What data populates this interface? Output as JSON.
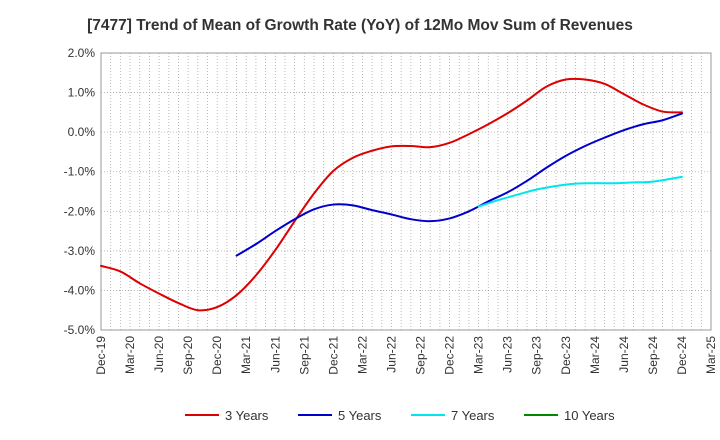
{
  "chart_data": {
    "type": "line",
    "title": "[7477]  Trend of Mean of Growth Rate (YoY) of 12Mo Mov Sum of Revenues",
    "xlabel": "",
    "ylabel": "",
    "ylim": [
      -5.0,
      2.0
    ],
    "yticks": [
      {
        "value": 2.0,
        "label": "2.0%"
      },
      {
        "value": 1.0,
        "label": "1.0%"
      },
      {
        "value": 0.0,
        "label": "0.0%"
      },
      {
        "value": -1.0,
        "label": "-1.0%"
      },
      {
        "value": -2.0,
        "label": "-2.0%"
      },
      {
        "value": -3.0,
        "label": "-3.0%"
      },
      {
        "value": -4.0,
        "label": "-4.0%"
      },
      {
        "value": -5.0,
        "label": "-5.0%"
      }
    ],
    "x_range": [
      0,
      63
    ],
    "xticks": [
      {
        "index": 0,
        "label": "Dec-19"
      },
      {
        "index": 3,
        "label": "Mar-20"
      },
      {
        "index": 6,
        "label": "Jun-20"
      },
      {
        "index": 9,
        "label": "Sep-20"
      },
      {
        "index": 12,
        "label": "Dec-20"
      },
      {
        "index": 15,
        "label": "Mar-21"
      },
      {
        "index": 18,
        "label": "Jun-21"
      },
      {
        "index": 21,
        "label": "Sep-21"
      },
      {
        "index": 24,
        "label": "Dec-21"
      },
      {
        "index": 27,
        "label": "Mar-22"
      },
      {
        "index": 30,
        "label": "Jun-22"
      },
      {
        "index": 33,
        "label": "Sep-22"
      },
      {
        "index": 36,
        "label": "Dec-22"
      },
      {
        "index": 39,
        "label": "Mar-23"
      },
      {
        "index": 42,
        "label": "Jun-23"
      },
      {
        "index": 45,
        "label": "Sep-23"
      },
      {
        "index": 48,
        "label": "Dec-23"
      },
      {
        "index": 51,
        "label": "Mar-24"
      },
      {
        "index": 54,
        "label": "Jun-24"
      },
      {
        "index": 57,
        "label": "Sep-24"
      },
      {
        "index": 60,
        "label": "Dec-24"
      },
      {
        "index": 63,
        "label": "Mar-25"
      }
    ],
    "grid": true,
    "legend_position": "bottom",
    "series": [
      {
        "name": "3 Years",
        "color": "#dd0000",
        "points": [
          [
            0,
            -3.38
          ],
          [
            2,
            -3.52
          ],
          [
            4,
            -3.82
          ],
          [
            6,
            -4.08
          ],
          [
            8,
            -4.32
          ],
          [
            10,
            -4.5
          ],
          [
            12,
            -4.42
          ],
          [
            14,
            -4.12
          ],
          [
            16,
            -3.62
          ],
          [
            18,
            -2.98
          ],
          [
            20,
            -2.25
          ],
          [
            22,
            -1.55
          ],
          [
            24,
            -0.98
          ],
          [
            26,
            -0.65
          ],
          [
            28,
            -0.47
          ],
          [
            30,
            -0.36
          ],
          [
            32,
            -0.35
          ],
          [
            34,
            -0.38
          ],
          [
            36,
            -0.27
          ],
          [
            38,
            -0.05
          ],
          [
            40,
            0.2
          ],
          [
            42,
            0.48
          ],
          [
            44,
            0.8
          ],
          [
            46,
            1.15
          ],
          [
            48,
            1.33
          ],
          [
            50,
            1.33
          ],
          [
            52,
            1.22
          ],
          [
            54,
            0.96
          ],
          [
            56,
            0.7
          ],
          [
            58,
            0.52
          ],
          [
            60,
            0.5
          ]
        ]
      },
      {
        "name": "5 Years",
        "color": "#0000cc",
        "points": [
          [
            14,
            -3.12
          ],
          [
            16,
            -2.83
          ],
          [
            18,
            -2.5
          ],
          [
            20,
            -2.2
          ],
          [
            22,
            -1.95
          ],
          [
            24,
            -1.83
          ],
          [
            26,
            -1.85
          ],
          [
            28,
            -1.97
          ],
          [
            30,
            -2.08
          ],
          [
            32,
            -2.2
          ],
          [
            34,
            -2.25
          ],
          [
            36,
            -2.18
          ],
          [
            38,
            -2.0
          ],
          [
            40,
            -1.75
          ],
          [
            42,
            -1.52
          ],
          [
            44,
            -1.23
          ],
          [
            46,
            -0.9
          ],
          [
            48,
            -0.6
          ],
          [
            50,
            -0.35
          ],
          [
            52,
            -0.14
          ],
          [
            54,
            0.05
          ],
          [
            56,
            0.2
          ],
          [
            58,
            0.3
          ],
          [
            60,
            0.47
          ]
        ]
      },
      {
        "name": "7 Years",
        "color": "#00e5ee",
        "points": [
          [
            39,
            -1.88
          ],
          [
            41,
            -1.72
          ],
          [
            43,
            -1.58
          ],
          [
            45,
            -1.45
          ],
          [
            47,
            -1.36
          ],
          [
            49,
            -1.3
          ],
          [
            51,
            -1.29
          ],
          [
            53,
            -1.29
          ],
          [
            55,
            -1.27
          ],
          [
            57,
            -1.25
          ],
          [
            60,
            -1.13
          ]
        ]
      },
      {
        "name": "10 Years",
        "color": "#008800",
        "points": []
      }
    ]
  }
}
